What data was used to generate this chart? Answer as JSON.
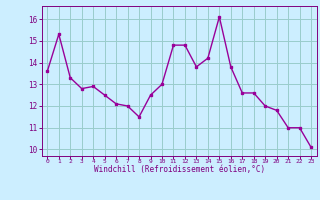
{
  "x": [
    0,
    1,
    2,
    3,
    4,
    5,
    6,
    7,
    8,
    9,
    10,
    11,
    12,
    13,
    14,
    15,
    16,
    17,
    18,
    19,
    20,
    21,
    22,
    23
  ],
  "y": [
    13.6,
    15.3,
    13.3,
    12.8,
    12.9,
    12.5,
    12.1,
    12.0,
    11.5,
    12.5,
    13.0,
    14.8,
    14.8,
    13.8,
    14.2,
    16.1,
    13.8,
    12.6,
    12.6,
    12.0,
    11.8,
    11.0,
    11.0,
    10.1
  ],
  "line_color": "#990099",
  "marker_color": "#990099",
  "bg_color": "#cceeff",
  "grid_color": "#99cccc",
  "xlabel": "Windchill (Refroidissement éolien,°C)",
  "xlabel_color": "#800080",
  "ylabel_ticks": [
    10,
    11,
    12,
    13,
    14,
    15,
    16
  ],
  "xtick_labels": [
    "0",
    "1",
    "2",
    "3",
    "4",
    "5",
    "6",
    "7",
    "8",
    "9",
    "10",
    "11",
    "12",
    "13",
    "14",
    "15",
    "16",
    "17",
    "18",
    "19",
    "20",
    "21",
    "22",
    "23"
  ],
  "ylim": [
    9.7,
    16.6
  ],
  "xlim": [
    -0.5,
    23.5
  ],
  "tick_color": "#800080",
  "tick_label_color": "#800080",
  "font_family": "monospace"
}
